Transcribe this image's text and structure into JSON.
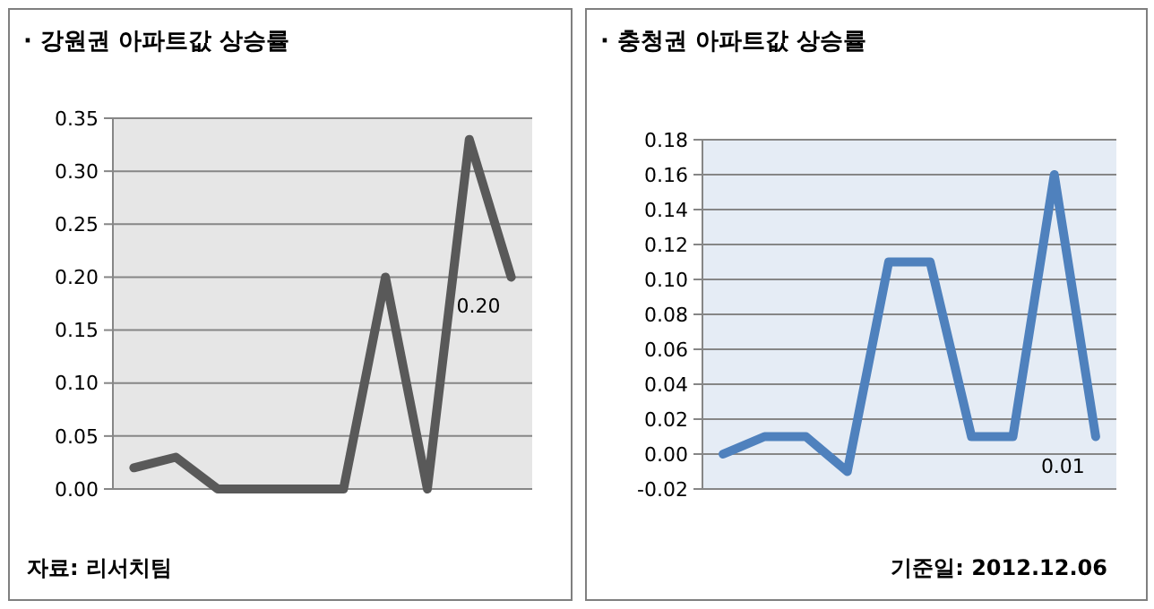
{
  "chart_data": [
    {
      "type": "line",
      "title": "· 강원권 아파트값 상승률",
      "categories": [
        null,
        null,
        null,
        null,
        null,
        null,
        null,
        null,
        null,
        null
      ],
      "series": [
        {
          "color": "#595959",
          "values": [
            0.02,
            0.03,
            0,
            0,
            0,
            0,
            0.2,
            0,
            0.33,
            0.2
          ],
          "value_labels": [
            null,
            null,
            null,
            null,
            null,
            null,
            null,
            null,
            null,
            "0.20"
          ]
        }
      ],
      "ylim": [
        0,
        0.35
      ],
      "yticks": [
        {
          "value": 0,
          "label": "0.00"
        },
        {
          "value": 0.05,
          "label": "0.05"
        },
        {
          "value": 0.1,
          "label": "0.10"
        },
        {
          "value": 0.15,
          "label": "0.15"
        },
        {
          "value": 0.2,
          "label": "0.20"
        },
        {
          "value": 0.25,
          "label": "0.25"
        },
        {
          "value": 0.3,
          "label": "0.30"
        },
        {
          "value": 0.35,
          "label": "0.35"
        }
      ],
      "grid": "y",
      "annotations": [
        "자료: 리서치팀"
      ]
    },
    {
      "type": "line",
      "title": "· 충청권 아파트값 상승률",
      "categories": [
        null,
        null,
        null,
        null,
        null,
        null,
        null,
        null,
        null,
        null
      ],
      "series": [
        {
          "color": "#4f81bd",
          "values": [
            0,
            0.01,
            0.01,
            -0.01,
            0.11,
            0.11,
            0.01,
            0.01,
            0.16,
            0.01
          ],
          "value_labels": [
            null,
            null,
            null,
            null,
            null,
            null,
            null,
            null,
            null,
            "0.01"
          ]
        }
      ],
      "ylim": [
        -0.02,
        0.18
      ],
      "yticks": [
        {
          "value": -0.02,
          "label": "-0.02"
        },
        {
          "value": 0,
          "label": "0.00"
        },
        {
          "value": 0.02,
          "label": "0.02"
        },
        {
          "value": 0.04,
          "label": "0.04"
        },
        {
          "value": 0.06,
          "label": "0.06"
        },
        {
          "value": 0.08,
          "label": "0.08"
        },
        {
          "value": 0.1,
          "label": "0.10"
        },
        {
          "value": 0.12,
          "label": "0.12"
        },
        {
          "value": 0.14,
          "label": "0.14"
        },
        {
          "value": 0.16,
          "label": "0.16"
        },
        {
          "value": 0.18,
          "label": "0.18"
        }
      ],
      "grid": "y",
      "annotations": [
        "기준일: 2012.12.06"
      ]
    }
  ]
}
